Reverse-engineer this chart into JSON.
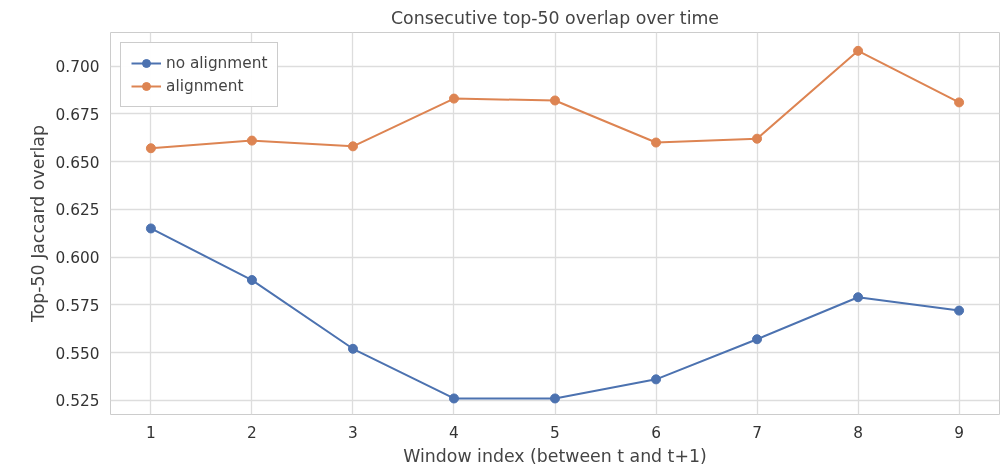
{
  "chart_data": {
    "type": "line",
    "title": "Consecutive top-50 overlap over time",
    "xlabel": "Window index (between t and t+1)",
    "ylabel": "Top-50 Jaccard overlap",
    "x": [
      1,
      2,
      3,
      4,
      5,
      6,
      7,
      8,
      9
    ],
    "series": [
      {
        "name": "no alignment",
        "color": "#4c72b0",
        "values": [
          0.615,
          0.588,
          0.552,
          0.526,
          0.526,
          0.536,
          0.557,
          0.579,
          0.572
        ]
      },
      {
        "name": "alignment",
        "color": "#dd8452",
        "values": [
          0.657,
          0.661,
          0.658,
          0.683,
          0.682,
          0.66,
          0.662,
          0.708,
          0.681
        ]
      }
    ],
    "xlim": [
      0.6,
      9.4
    ],
    "xticks": [
      1,
      2,
      3,
      4,
      5,
      6,
      7,
      8,
      9
    ],
    "ylim": [
      0.5176,
      0.7176
    ],
    "yticks": [
      {
        "value": 0.525,
        "label": "0.525"
      },
      {
        "value": 0.55,
        "label": "0.550"
      },
      {
        "value": 0.575,
        "label": "0.575"
      },
      {
        "value": 0.6,
        "label": "0.600"
      },
      {
        "value": 0.625,
        "label": "0.625"
      },
      {
        "value": 0.65,
        "label": "0.650"
      },
      {
        "value": 0.675,
        "label": "0.675"
      },
      {
        "value": 0.7,
        "label": "0.700"
      }
    ],
    "grid": true,
    "legend": "top left",
    "marker": "circle",
    "line_style": "solid"
  }
}
